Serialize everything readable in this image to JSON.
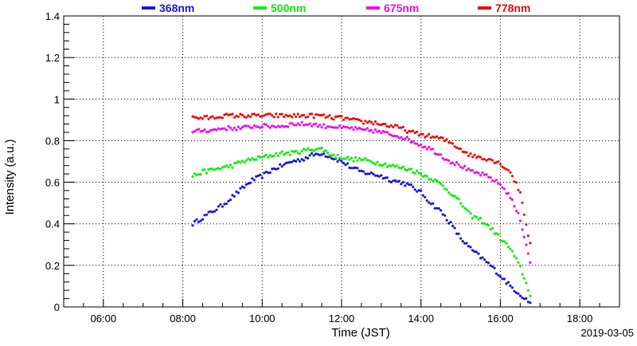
{
  "chart_data": {
    "type": "scatter",
    "title": "",
    "xlabel": "Time (JST)",
    "ylabel": "Intensity (a.u.)",
    "date_label": "2019-03-05",
    "x_range": [
      "05:00",
      "19:00"
    ],
    "x_ticks": [
      "06:00",
      "08:00",
      "10:00",
      "12:00",
      "14:00",
      "16:00",
      "18:00"
    ],
    "ylim": [
      0,
      1.4
    ],
    "y_ticks": [
      "0",
      "0.2",
      "0.4",
      "0.6",
      "0.8",
      "1",
      "1.2",
      "1.4"
    ],
    "grid": true,
    "legend_position": "top",
    "series": [
      {
        "name": "368nm",
        "color": "#1c1cdc",
        "x": [
          "08:15",
          "08:30",
          "08:45",
          "09:00",
          "09:15",
          "09:30",
          "09:45",
          "10:00",
          "10:15",
          "10:30",
          "10:45",
          "11:00",
          "11:15",
          "11:30",
          "11:45",
          "12:00",
          "12:15",
          "12:30",
          "12:45",
          "13:00",
          "13:15",
          "13:30",
          "13:45",
          "14:00",
          "14:15",
          "14:30",
          "14:45",
          "15:00",
          "15:15",
          "15:30",
          "15:45",
          "16:00",
          "16:15",
          "16:30",
          "16:45"
        ],
        "values": [
          0.4,
          0.43,
          0.46,
          0.49,
          0.53,
          0.57,
          0.61,
          0.63,
          0.66,
          0.68,
          0.7,
          0.71,
          0.73,
          0.74,
          0.72,
          0.7,
          0.67,
          0.65,
          0.64,
          0.63,
          0.61,
          0.6,
          0.58,
          0.55,
          0.5,
          0.46,
          0.4,
          0.33,
          0.28,
          0.24,
          0.2,
          0.15,
          0.1,
          0.06,
          0.02
        ]
      },
      {
        "name": "500nm",
        "color": "#11ee11",
        "x": [
          "08:15",
          "08:30",
          "08:45",
          "09:00",
          "09:15",
          "09:30",
          "09:45",
          "10:00",
          "10:15",
          "10:30",
          "10:45",
          "11:00",
          "11:15",
          "11:30",
          "11:45",
          "12:00",
          "12:15",
          "12:30",
          "12:45",
          "13:00",
          "13:15",
          "13:30",
          "13:45",
          "14:00",
          "14:15",
          "14:30",
          "14:45",
          "15:00",
          "15:15",
          "15:30",
          "15:45",
          "16:00",
          "16:15",
          "16:30",
          "16:45"
        ],
        "values": [
          0.63,
          0.65,
          0.66,
          0.67,
          0.68,
          0.7,
          0.71,
          0.72,
          0.73,
          0.74,
          0.74,
          0.75,
          0.76,
          0.76,
          0.73,
          0.72,
          0.71,
          0.71,
          0.7,
          0.69,
          0.68,
          0.67,
          0.66,
          0.64,
          0.62,
          0.59,
          0.55,
          0.5,
          0.44,
          0.42,
          0.38,
          0.33,
          0.28,
          0.19,
          0.06
        ]
      },
      {
        "name": "675nm",
        "color": "#ee11ee",
        "x": [
          "08:15",
          "08:30",
          "08:45",
          "09:00",
          "09:15",
          "09:30",
          "09:45",
          "10:00",
          "10:15",
          "10:30",
          "10:45",
          "11:00",
          "11:15",
          "11:30",
          "11:45",
          "12:00",
          "12:15",
          "12:30",
          "12:45",
          "13:00",
          "13:15",
          "13:30",
          "13:45",
          "14:00",
          "14:15",
          "14:30",
          "14:45",
          "15:00",
          "15:15",
          "15:30",
          "15:45",
          "16:00",
          "16:15",
          "16:30",
          "16:45"
        ],
        "values": [
          0.84,
          0.85,
          0.85,
          0.86,
          0.86,
          0.86,
          0.87,
          0.87,
          0.87,
          0.87,
          0.88,
          0.88,
          0.88,
          0.87,
          0.87,
          0.86,
          0.86,
          0.85,
          0.85,
          0.84,
          0.83,
          0.82,
          0.8,
          0.78,
          0.76,
          0.73,
          0.7,
          0.68,
          0.65,
          0.64,
          0.62,
          0.59,
          0.53,
          0.42,
          0.22
        ]
      },
      {
        "name": "778nm",
        "color": "#ee1111",
        "x": [
          "08:15",
          "08:30",
          "08:45",
          "09:00",
          "09:15",
          "09:30",
          "09:45",
          "10:00",
          "10:15",
          "10:30",
          "10:45",
          "11:00",
          "11:15",
          "11:30",
          "11:45",
          "12:00",
          "12:15",
          "12:30",
          "12:45",
          "13:00",
          "13:15",
          "13:30",
          "13:45",
          "14:00",
          "14:15",
          "14:30",
          "14:45",
          "15:00",
          "15:15",
          "15:30",
          "15:45",
          "16:00",
          "16:15",
          "16:30",
          "16:45"
        ],
        "values": [
          0.91,
          0.91,
          0.91,
          0.92,
          0.92,
          0.92,
          0.92,
          0.92,
          0.92,
          0.92,
          0.92,
          0.92,
          0.92,
          0.92,
          0.91,
          0.91,
          0.9,
          0.89,
          0.89,
          0.88,
          0.87,
          0.86,
          0.84,
          0.83,
          0.82,
          0.81,
          0.79,
          0.76,
          0.73,
          0.72,
          0.71,
          0.69,
          0.65,
          0.55,
          0.3
        ]
      }
    ]
  }
}
